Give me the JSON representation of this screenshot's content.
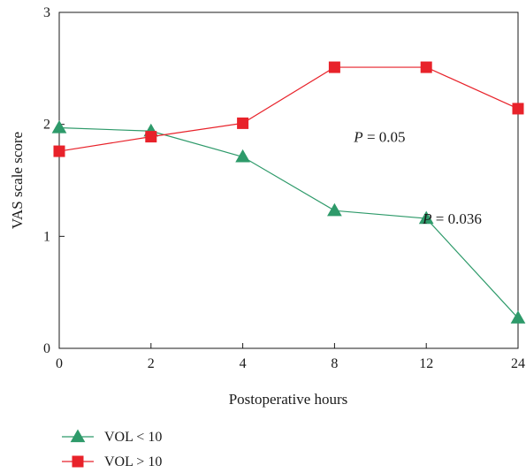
{
  "chart_data": {
    "type": "line",
    "categories": [
      "0",
      "2",
      "4",
      "8",
      "12",
      "24"
    ],
    "xlabel": "Postoperative hours",
    "ylabel": "VAS scale score",
    "ylim": [
      0,
      3
    ],
    "yticks": [
      0,
      1,
      2,
      3
    ],
    "grid": false,
    "legend_position": "bottom-left",
    "series": [
      {
        "name": "VOL < 10",
        "marker": "triangle",
        "color": "#2e9a6a",
        "values": [
          1.97,
          1.94,
          1.71,
          1.23,
          1.16,
          0.27
        ]
      },
      {
        "name": "VOL > 10",
        "marker": "square",
        "color": "#e8222a",
        "values": [
          1.76,
          1.89,
          2.01,
          2.51,
          2.51,
          2.14
        ]
      }
    ],
    "annotations": [
      {
        "italic": "P",
        "rest": " = 0.05",
        "x_index": 3.5,
        "y": 1.89
      },
      {
        "italic": "P",
        "rest": " = 0.036",
        "x_index": 4.25,
        "y": 1.16
      }
    ]
  }
}
